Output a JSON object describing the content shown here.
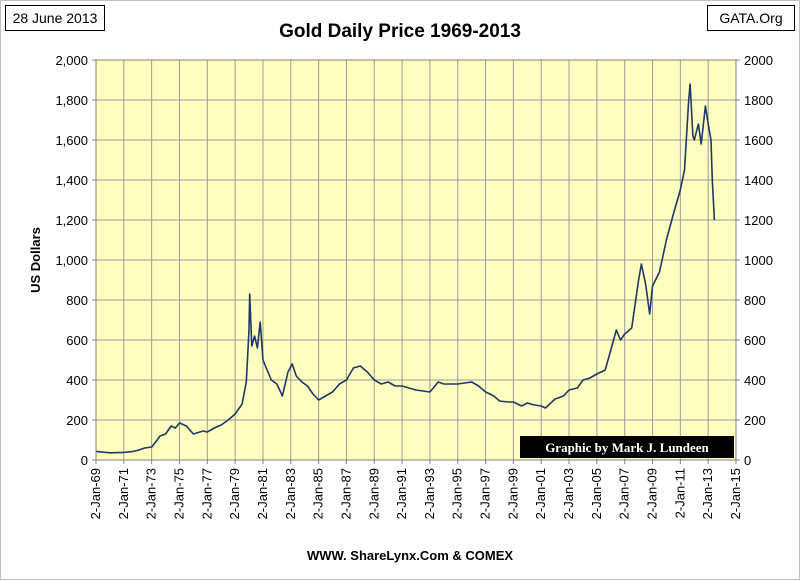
{
  "header": {
    "date": "28 June 2013",
    "source": "GATA.Org"
  },
  "chart_data": {
    "type": "line",
    "title": "Gold Daily Price 1969-2013",
    "ylabel": "US Dollars",
    "xlabel": "WWW. ShareLynx.Com & COMEX",
    "credit": "Graphic by Mark J. Lundeen",
    "ylim": [
      0,
      2000
    ],
    "xlim": [
      1969.0,
      2015.0
    ],
    "y_ticks_left": [
      "0",
      "200",
      "400",
      "600",
      "800",
      "1,000",
      "1,200",
      "1,400",
      "1,600",
      "1,800",
      "2,000"
    ],
    "y_ticks_right": [
      "0",
      "200",
      "400",
      "600",
      "800",
      "1000",
      "1200",
      "1400",
      "1600",
      "1800",
      "2000"
    ],
    "x_ticks": [
      "2-Jan-69",
      "2-Jan-71",
      "2-Jan-73",
      "2-Jan-75",
      "2-Jan-77",
      "2-Jan-79",
      "2-Jan-81",
      "2-Jan-83",
      "2-Jan-85",
      "2-Jan-87",
      "2-Jan-89",
      "2-Jan-91",
      "2-Jan-93",
      "2-Jan-95",
      "2-Jan-97",
      "2-Jan-99",
      "2-Jan-01",
      "2-Jan-03",
      "2-Jan-05",
      "2-Jan-07",
      "2-Jan-09",
      "2-Jan-11",
      "2-Jan-13",
      "2-Jan-15"
    ],
    "grid": true,
    "colors": {
      "plot_bg": "#ffffc0",
      "line": "#1f3864",
      "grid": "#9a9a9a",
      "credit_bg": "#000000",
      "credit_text": "#ffffff"
    },
    "series": [
      {
        "name": "Gold Daily Price",
        "x": [
          1969.0,
          1970.0,
          1971.0,
          1971.6,
          1972.0,
          1972.5,
          1973.0,
          1973.4,
          1973.6,
          1974.0,
          1974.4,
          1974.7,
          1975.0,
          1975.5,
          1976.0,
          1976.7,
          1977.0,
          1977.5,
          1978.0,
          1978.5,
          1979.0,
          1979.5,
          1979.8,
          1980.0,
          1980.05,
          1980.2,
          1980.4,
          1980.6,
          1980.8,
          1981.0,
          1981.3,
          1981.6,
          1982.0,
          1982.4,
          1982.8,
          1983.1,
          1983.4,
          1983.8,
          1984.2,
          1984.6,
          1985.0,
          1985.5,
          1986.0,
          1986.5,
          1987.0,
          1987.5,
          1988.0,
          1988.5,
          1989.0,
          1989.5,
          1990.0,
          1990.5,
          1991.0,
          1992.0,
          1993.0,
          1993.6,
          1994.0,
          1995.0,
          1996.0,
          1996.5,
          1997.0,
          1997.6,
          1998.0,
          1998.6,
          1999.0,
          1999.6,
          2000.0,
          2000.5,
          2001.0,
          2001.3,
          2002.0,
          2002.6,
          2003.0,
          2003.6,
          2004.0,
          2004.5,
          2005.0,
          2005.6,
          2006.0,
          2006.4,
          2006.7,
          2007.0,
          2007.5,
          2008.0,
          2008.2,
          2008.5,
          2008.8,
          2009.0,
          2009.5,
          2010.0,
          2010.5,
          2011.0,
          2011.3,
          2011.6,
          2011.7,
          2011.9,
          2012.0,
          2012.3,
          2012.5,
          2012.8,
          2013.0,
          2013.2,
          2013.3,
          2013.45
        ],
        "y": [
          43,
          36,
          38,
          42,
          48,
          60,
          65,
          100,
          120,
          130,
          170,
          160,
          185,
          170,
          130,
          145,
          140,
          160,
          175,
          200,
          230,
          280,
          390,
          650,
          830,
          570,
          620,
          560,
          690,
          500,
          450,
          400,
          380,
          320,
          440,
          480,
          420,
          390,
          370,
          330,
          300,
          320,
          340,
          380,
          400,
          460,
          470,
          440,
          400,
          380,
          390,
          370,
          370,
          350,
          340,
          390,
          380,
          380,
          390,
          370,
          340,
          320,
          295,
          290,
          290,
          270,
          285,
          275,
          270,
          260,
          305,
          320,
          350,
          360,
          400,
          410,
          430,
          450,
          550,
          650,
          600,
          630,
          660,
          900,
          980,
          880,
          730,
          870,
          940,
          1100,
          1230,
          1350,
          1450,
          1800,
          1880,
          1620,
          1600,
          1680,
          1580,
          1770,
          1680,
          1600,
          1400,
          1200
        ]
      }
    ]
  }
}
